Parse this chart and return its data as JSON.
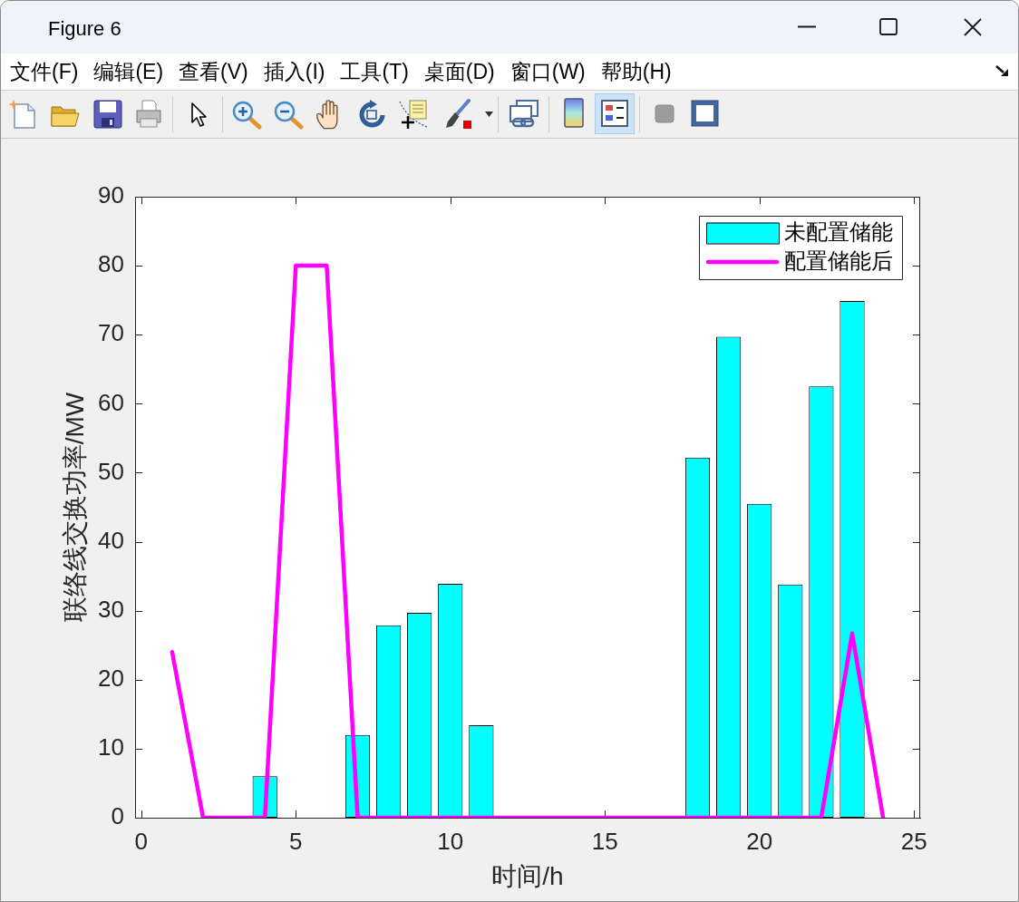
{
  "chart_data": {
    "type": "bar",
    "title": "Figure 6",
    "annotations": [
      "文件(F)",
      "编辑(E)",
      "查看(V)",
      "插入(I)",
      "工具(T)",
      "桌面(D)",
      "窗口(W)",
      "帮助(H)"
    ],
    "xlabel": "时间/h",
    "ylabel": "联络线交换功率/MW",
    "x": [
      1,
      2,
      3,
      4,
      5,
      6,
      7,
      8,
      9,
      10,
      11,
      12,
      13,
      14,
      15,
      16,
      17,
      18,
      19,
      20,
      21,
      22,
      23,
      24
    ],
    "series": [
      {
        "name": "未配置储能",
        "color": "#00ffff",
        "values": [
          0,
          0,
          0,
          6,
          0,
          0,
          12,
          27.9,
          29.7,
          33.9,
          13.4,
          0,
          0,
          0,
          0,
          0,
          0,
          52.2,
          69.7,
          45.5,
          33.8,
          62.5,
          74.9,
          0
        ]
      },
      {
        "name": "配置储能后",
        "type": "line",
        "color": "#ff00ff",
        "values": [
          24,
          0,
          0,
          0,
          80,
          80,
          0,
          0,
          0,
          0,
          0,
          0,
          0,
          0,
          0,
          0,
          0,
          0,
          0,
          0,
          0,
          0,
          26.7,
          0
        ]
      }
    ],
    "xlim": [
      -0.2,
      25.2
    ],
    "xticks": [
      0,
      5,
      10,
      15,
      20,
      25
    ],
    "ylim": [
      0,
      90
    ],
    "yticks": [
      0,
      10,
      20,
      30,
      40,
      50,
      60,
      70,
      80,
      90
    ],
    "grid": false,
    "legend": "top right",
    "marker": "none"
  }
}
